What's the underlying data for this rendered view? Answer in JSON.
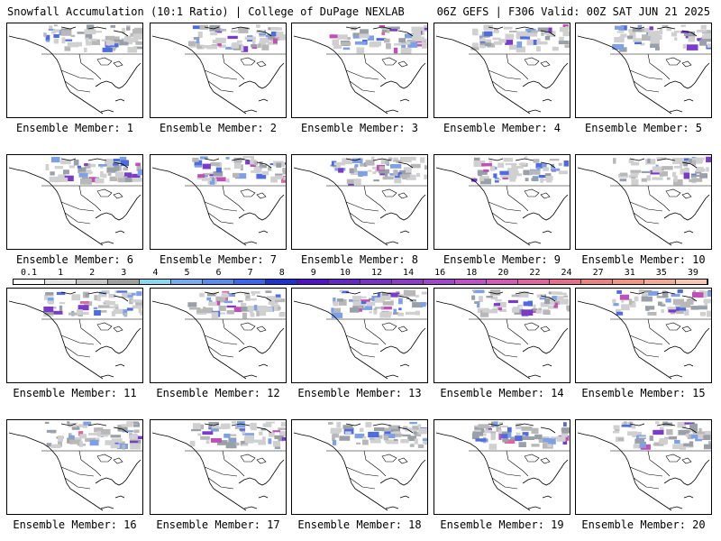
{
  "header": {
    "left_title": "Snowfall Accumulation (10:1 Ratio) | College of DuPage NEXLAB",
    "right_title": "06Z GEFS | F306 Valid: 00Z SAT JUN 21 2025"
  },
  "legend": {
    "labels": [
      "0.1",
      "1",
      "2",
      "3",
      "4",
      "5",
      "6",
      "7",
      "8",
      "9",
      "10",
      "12",
      "14",
      "16",
      "18",
      "20",
      "22",
      "24",
      "27",
      "31",
      "35",
      "39"
    ],
    "colors": [
      "#ffffff",
      "#e6e6e6",
      "#c8c8c8",
      "#a0a0a0",
      "#8cd6f0",
      "#78aaf0",
      "#5a8cf0",
      "#3c64f0",
      "#1e32d2",
      "#5014c8",
      "#6428c8",
      "#7832c8",
      "#8c3cc8",
      "#a046c8",
      "#be50c8",
      "#d25ab4",
      "#e164a0",
      "#e66e8c",
      "#eb8282",
      "#f09682",
      "#f5aa96",
      "#f8c8b4"
    ]
  },
  "panels": [
    {
      "label": "Ensemble Member: 1"
    },
    {
      "label": "Ensemble Member: 2"
    },
    {
      "label": "Ensemble Member: 3"
    },
    {
      "label": "Ensemble Member: 4"
    },
    {
      "label": "Ensemble Member: 5"
    },
    {
      "label": "Ensemble Member: 6"
    },
    {
      "label": "Ensemble Member: 7"
    },
    {
      "label": "Ensemble Member: 8"
    },
    {
      "label": "Ensemble Member: 9"
    },
    {
      "label": "Ensemble Member: 10"
    },
    {
      "label": "Ensemble Member: 11"
    },
    {
      "label": "Ensemble Member: 12"
    },
    {
      "label": "Ensemble Member: 13"
    },
    {
      "label": "Ensemble Member: 14"
    },
    {
      "label": "Ensemble Member: 15"
    },
    {
      "label": "Ensemble Member: 16"
    },
    {
      "label": "Ensemble Member: 17"
    },
    {
      "label": "Ensemble Member: 18"
    },
    {
      "label": "Ensemble Member: 19"
    },
    {
      "label": "Ensemble Member: 20"
    }
  ]
}
